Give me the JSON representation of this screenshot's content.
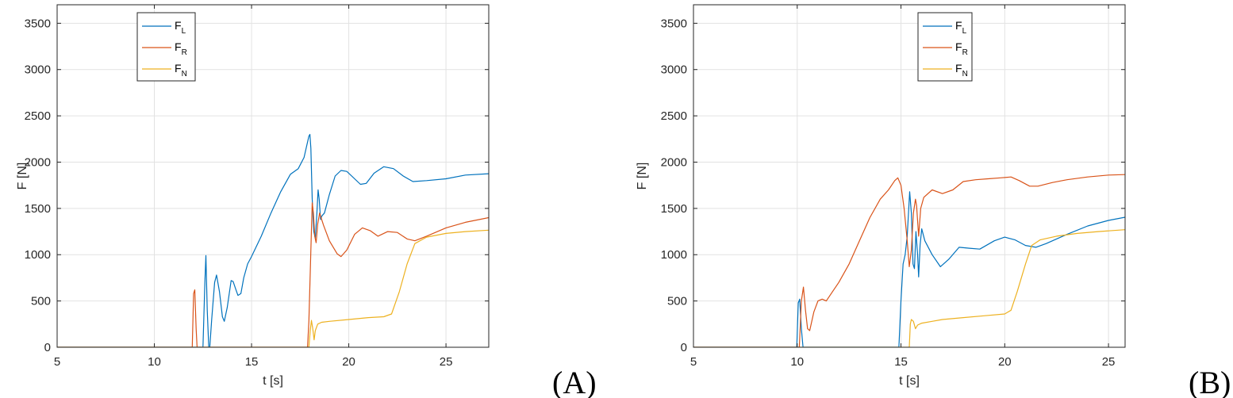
{
  "chart_data": [
    {
      "type": "line",
      "panel_label": "(A)",
      "xlabel": "t [s]",
      "ylabel": "F [N]",
      "xlim": [
        5,
        27.2
      ],
      "ylim": [
        0,
        3700
      ],
      "xticks": [
        5,
        10,
        15,
        20,
        25
      ],
      "yticks": [
        0,
        500,
        1000,
        1500,
        2000,
        2500,
        3000,
        3500
      ],
      "grid": true,
      "legend_position": "top-left",
      "series": [
        {
          "name": "F",
          "sub": "L",
          "color": "#0072BD",
          "points": [
            [
              5,
              0
            ],
            [
              12.5,
              0
            ],
            [
              12.6,
              700
            ],
            [
              12.65,
              990
            ],
            [
              12.72,
              400
            ],
            [
              12.8,
              0
            ],
            [
              12.85,
              0
            ],
            [
              12.95,
              300
            ],
            [
              13.1,
              700
            ],
            [
              13.2,
              780
            ],
            [
              13.35,
              600
            ],
            [
              13.5,
              330
            ],
            [
              13.6,
              280
            ],
            [
              13.75,
              430
            ],
            [
              13.95,
              720
            ],
            [
              14.05,
              710
            ],
            [
              14.2,
              620
            ],
            [
              14.3,
              560
            ],
            [
              14.45,
              580
            ],
            [
              14.6,
              750
            ],
            [
              14.8,
              900
            ],
            [
              15.0,
              980
            ],
            [
              15.5,
              1200
            ],
            [
              16,
              1450
            ],
            [
              16.5,
              1680
            ],
            [
              17,
              1870
            ],
            [
              17.4,
              1930
            ],
            [
              17.7,
              2050
            ],
            [
              17.95,
              2280
            ],
            [
              18.0,
              2300
            ],
            [
              18.05,
              2150
            ],
            [
              18.12,
              1600
            ],
            [
              18.2,
              1250
            ],
            [
              18.28,
              1180
            ],
            [
              18.36,
              1450
            ],
            [
              18.42,
              1700
            ],
            [
              18.48,
              1600
            ],
            [
              18.55,
              1380
            ],
            [
              18.62,
              1420
            ],
            [
              18.75,
              1450
            ],
            [
              19.0,
              1650
            ],
            [
              19.3,
              1850
            ],
            [
              19.6,
              1910
            ],
            [
              19.9,
              1900
            ],
            [
              20.3,
              1820
            ],
            [
              20.6,
              1760
            ],
            [
              20.9,
              1770
            ],
            [
              21.3,
              1880
            ],
            [
              21.8,
              1950
            ],
            [
              22.3,
              1930
            ],
            [
              22.8,
              1850
            ],
            [
              23.3,
              1790
            ],
            [
              24,
              1800
            ],
            [
              25,
              1820
            ],
            [
              26,
              1860
            ],
            [
              27.2,
              1875
            ]
          ]
        },
        {
          "name": "F",
          "sub": "R",
          "color": "#D95319",
          "points": [
            [
              5,
              0
            ],
            [
              11.95,
              0
            ],
            [
              12.02,
              580
            ],
            [
              12.08,
              620
            ],
            [
              12.15,
              200
            ],
            [
              12.2,
              0
            ],
            [
              17.88,
              0
            ],
            [
              17.95,
              280
            ],
            [
              18.05,
              1050
            ],
            [
              18.12,
              1560
            ],
            [
              18.18,
              1450
            ],
            [
              18.25,
              1200
            ],
            [
              18.32,
              1130
            ],
            [
              18.4,
              1330
            ],
            [
              18.5,
              1450
            ],
            [
              18.7,
              1320
            ],
            [
              19.0,
              1150
            ],
            [
              19.4,
              1010
            ],
            [
              19.6,
              980
            ],
            [
              19.9,
              1050
            ],
            [
              20.3,
              1220
            ],
            [
              20.7,
              1290
            ],
            [
              21.1,
              1260
            ],
            [
              21.5,
              1200
            ],
            [
              22.0,
              1250
            ],
            [
              22.5,
              1240
            ],
            [
              23.0,
              1170
            ],
            [
              23.4,
              1150
            ],
            [
              24,
              1200
            ],
            [
              25,
              1290
            ],
            [
              26,
              1350
            ],
            [
              27.2,
              1400
            ]
          ]
        },
        {
          "name": "F",
          "sub": "N",
          "color": "#EDB120",
          "points": [
            [
              5,
              0
            ],
            [
              17.95,
              0
            ],
            [
              18.02,
              180
            ],
            [
              18.08,
              290
            ],
            [
              18.15,
              200
            ],
            [
              18.22,
              80
            ],
            [
              18.28,
              180
            ],
            [
              18.4,
              250
            ],
            [
              18.6,
              270
            ],
            [
              19,
              280
            ],
            [
              20,
              300
            ],
            [
              21,
              320
            ],
            [
              21.8,
              330
            ],
            [
              22.2,
              360
            ],
            [
              22.6,
              600
            ],
            [
              23.0,
              900
            ],
            [
              23.4,
              1120
            ],
            [
              24,
              1190
            ],
            [
              25,
              1230
            ],
            [
              26,
              1250
            ],
            [
              27.2,
              1265
            ]
          ]
        }
      ]
    },
    {
      "type": "line",
      "panel_label": "(B)",
      "xlabel": "t [s]",
      "ylabel": "F [N]",
      "xlim": [
        5,
        25.8
      ],
      "ylim": [
        0,
        3700
      ],
      "xticks": [
        5,
        10,
        15,
        20,
        25
      ],
      "yticks": [
        0,
        500,
        1000,
        1500,
        2000,
        2500,
        3000,
        3500
      ],
      "grid": true,
      "legend_position": "top-center",
      "series": [
        {
          "name": "F",
          "sub": "L",
          "color": "#0072BD",
          "points": [
            [
              5,
              0
            ],
            [
              9.98,
              0
            ],
            [
              10.05,
              480
            ],
            [
              10.12,
              520
            ],
            [
              10.2,
              200
            ],
            [
              10.28,
              0
            ],
            [
              14.9,
              0
            ],
            [
              15.0,
              500
            ],
            [
              15.1,
              900
            ],
            [
              15.2,
              1000
            ],
            [
              15.3,
              1200
            ],
            [
              15.42,
              1680
            ],
            [
              15.5,
              1450
            ],
            [
              15.58,
              900
            ],
            [
              15.65,
              850
            ],
            [
              15.72,
              1250
            ],
            [
              15.8,
              1000
            ],
            [
              15.85,
              760
            ],
            [
              15.92,
              1100
            ],
            [
              16.0,
              1280
            ],
            [
              16.15,
              1150
            ],
            [
              16.5,
              1000
            ],
            [
              16.9,
              870
            ],
            [
              17.3,
              950
            ],
            [
              17.8,
              1080
            ],
            [
              18.3,
              1070
            ],
            [
              18.8,
              1060
            ],
            [
              19.5,
              1150
            ],
            [
              20.0,
              1190
            ],
            [
              20.5,
              1160
            ],
            [
              21.0,
              1100
            ],
            [
              21.5,
              1080
            ],
            [
              22,
              1120
            ],
            [
              23,
              1220
            ],
            [
              24,
              1310
            ],
            [
              25,
              1370
            ],
            [
              25.8,
              1405
            ]
          ]
        },
        {
          "name": "F",
          "sub": "R",
          "color": "#D95319",
          "points": [
            [
              5,
              0
            ],
            [
              10.1,
              0
            ],
            [
              10.2,
              500
            ],
            [
              10.3,
              650
            ],
            [
              10.4,
              400
            ],
            [
              10.5,
              200
            ],
            [
              10.6,
              180
            ],
            [
              10.8,
              380
            ],
            [
              11.0,
              500
            ],
            [
              11.2,
              520
            ],
            [
              11.4,
              500
            ],
            [
              11.7,
              600
            ],
            [
              12,
              700
            ],
            [
              12.5,
              900
            ],
            [
              13,
              1150
            ],
            [
              13.5,
              1400
            ],
            [
              14,
              1600
            ],
            [
              14.4,
              1700
            ],
            [
              14.7,
              1800
            ],
            [
              14.85,
              1830
            ],
            [
              15.0,
              1750
            ],
            [
              15.15,
              1500
            ],
            [
              15.3,
              1150
            ],
            [
              15.4,
              870
            ],
            [
              15.5,
              1050
            ],
            [
              15.6,
              1450
            ],
            [
              15.7,
              1600
            ],
            [
              15.75,
              1530
            ],
            [
              15.85,
              1200
            ],
            [
              15.95,
              1500
            ],
            [
              16.1,
              1620
            ],
            [
              16.5,
              1700
            ],
            [
              17,
              1660
            ],
            [
              17.5,
              1700
            ],
            [
              18,
              1790
            ],
            [
              18.6,
              1810
            ],
            [
              19.2,
              1820
            ],
            [
              19.8,
              1830
            ],
            [
              20.3,
              1840
            ],
            [
              20.7,
              1800
            ],
            [
              21.2,
              1740
            ],
            [
              21.6,
              1740
            ],
            [
              22.3,
              1780
            ],
            [
              23,
              1810
            ],
            [
              24,
              1840
            ],
            [
              25,
              1860
            ],
            [
              25.8,
              1865
            ]
          ]
        },
        {
          "name": "F",
          "sub": "N",
          "color": "#EDB120",
          "points": [
            [
              5,
              0
            ],
            [
              15.4,
              0
            ],
            [
              15.45,
              250
            ],
            [
              15.5,
              300
            ],
            [
              15.6,
              280
            ],
            [
              15.7,
              200
            ],
            [
              15.8,
              240
            ],
            [
              16.0,
              260
            ],
            [
              16.5,
              280
            ],
            [
              17,
              300
            ],
            [
              18,
              320
            ],
            [
              19,
              340
            ],
            [
              20,
              360
            ],
            [
              20.3,
              400
            ],
            [
              20.6,
              600
            ],
            [
              21.0,
              900
            ],
            [
              21.3,
              1100
            ],
            [
              21.7,
              1160
            ],
            [
              22.5,
              1200
            ],
            [
              23.5,
              1230
            ],
            [
              24.5,
              1250
            ],
            [
              25.8,
              1270
            ]
          ]
        }
      ]
    }
  ]
}
